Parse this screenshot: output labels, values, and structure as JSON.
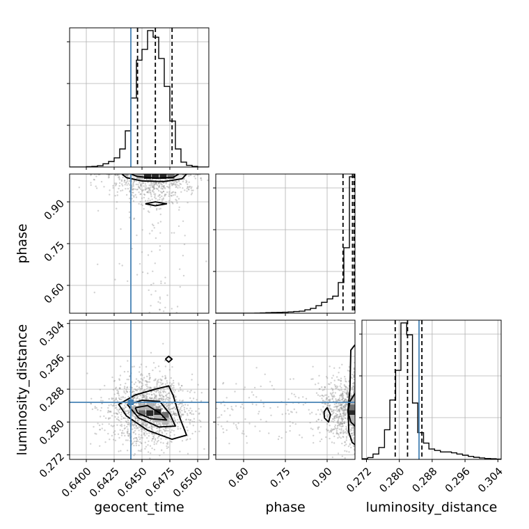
{
  "colors": {
    "truth": "#4682b4",
    "hist": "#000000",
    "grid": "#b0b0b0",
    "scatter": "#9a9a9a",
    "density": [
      "#e6e6e6",
      "#b3b3b3",
      "#6e6e6e",
      "#262626"
    ]
  },
  "chart_data": {
    "type": "corner",
    "grid": true,
    "parameters": [
      {
        "name": "geocent_time",
        "label": "geocent_time",
        "range": [
          0.6385,
          0.651
        ],
        "ticks": [
          0.64,
          0.6425,
          0.645,
          0.6475,
          0.65
        ],
        "tick_labels": [
          "0.6400",
          "0.6425",
          "0.6450",
          "0.6475",
          "0.6500"
        ],
        "truth": 0.644,
        "quantiles": [
          0.6446,
          0.6462,
          0.6477
        ]
      },
      {
        "name": "phase",
        "label": "phase",
        "range": [
          0.5,
          1.0
        ],
        "ticks": [
          0.6,
          0.75,
          0.9
        ],
        "tick_labels": [
          "0.60",
          "0.75",
          "0.90"
        ],
        "truth": null,
        "quantiles": [
          0.957,
          0.991,
          0.997
        ]
      },
      {
        "name": "luminosity_distance",
        "label": "luminosity_distance",
        "range": [
          0.2709,
          0.3048
        ],
        "ticks": [
          0.272,
          0.28,
          0.288,
          0.296,
          0.304
        ],
        "tick_labels": [
          "0.272",
          "0.280",
          "0.288",
          "0.296",
          "0.304"
        ],
        "truth": 0.2848,
        "quantiles": [
          0.279,
          0.282,
          0.2855
        ]
      }
    ],
    "histograms": {
      "geocent_time": {
        "bin_edges": [
          0.6385,
          0.639,
          0.6395,
          0.64,
          0.6405,
          0.641,
          0.6415,
          0.642,
          0.6425,
          0.643,
          0.6435,
          0.644,
          0.6445,
          0.645,
          0.6455,
          0.646,
          0.6465,
          0.647,
          0.6475,
          0.648,
          0.6485,
          0.649,
          0.6495,
          0.65,
          0.6505,
          0.651
        ],
        "counts": [
          0,
          0,
          0,
          1,
          2,
          4,
          10,
          17,
          28,
          55,
          110,
          210,
          325,
          358,
          415,
          395,
          330,
          245,
          140,
          55,
          15,
          5,
          2,
          0,
          0
        ]
      },
      "phase": {
        "bin_edges": [
          0.5,
          0.52,
          0.54,
          0.56,
          0.58,
          0.6,
          0.62,
          0.64,
          0.66,
          0.68,
          0.7,
          0.72,
          0.74,
          0.76,
          0.78,
          0.8,
          0.82,
          0.84,
          0.86,
          0.88,
          0.9,
          0.92,
          0.94,
          0.96,
          0.98,
          1.0
        ],
        "counts": [
          0,
          0,
          0,
          0,
          0,
          0,
          0,
          1,
          2,
          4,
          5,
          6,
          7,
          9,
          12,
          15,
          25,
          35,
          55,
          80,
          105,
          125,
          225,
          480,
          1000
        ]
      },
      "luminosity_distance": {
        "bin_edges": [
          0.2709,
          0.2723,
          0.2736,
          0.275,
          0.2764,
          0.2777,
          0.2791,
          0.2804,
          0.2818,
          0.2832,
          0.2845,
          0.2859,
          0.2872,
          0.2886,
          0.29,
          0.2913,
          0.2927,
          0.294,
          0.2954,
          0.2968,
          0.2981,
          0.2995,
          0.3008,
          0.3022,
          0.3036,
          0.3048
        ],
        "counts": [
          2,
          6,
          18,
          40,
          100,
          200,
          300,
          460,
          420,
          190,
          90,
          55,
          35,
          30,
          25,
          25,
          22,
          18,
          14,
          10,
          7,
          5,
          3,
          2,
          1
        ]
      }
    },
    "pairs": [
      {
        "x": "geocent_time",
        "y": "phase",
        "center": [
          0.6462,
          0.99
        ],
        "spread": [
          0.0017,
          0.045
        ],
        "scatter_count": 900,
        "density_cells": [
          {
            "x": 0.6455,
            "y": 0.995,
            "level": 3
          },
          {
            "x": 0.6462,
            "y": 0.995,
            "level": 3
          },
          {
            "x": 0.6469,
            "y": 0.995,
            "level": 3
          },
          {
            "x": 0.6448,
            "y": 0.995,
            "level": 1
          },
          {
            "x": 0.6476,
            "y": 0.995,
            "level": 2
          },
          {
            "x": 0.6441,
            "y": 0.995,
            "level": 0
          },
          {
            "x": 0.6483,
            "y": 0.995,
            "level": 0
          }
        ],
        "contours": [
          [
            [
              0.6432,
              1.0
            ],
            [
              0.6436,
              0.987
            ],
            [
              0.645,
              0.975
            ],
            [
              0.647,
              0.973
            ],
            [
              0.6486,
              0.983
            ],
            [
              0.649,
              1.0
            ]
          ],
          [
            [
              0.644,
              1.0
            ],
            [
              0.6446,
              0.991
            ],
            [
              0.6462,
              0.985
            ],
            [
              0.6478,
              0.988
            ],
            [
              0.6483,
              1.0
            ]
          ],
          [
            [
              0.6453,
              0.893
            ],
            [
              0.6462,
              0.9
            ],
            [
              0.6472,
              0.893
            ],
            [
              0.6462,
              0.886
            ],
            [
              0.6453,
              0.893
            ]
          ]
        ]
      },
      {
        "x": "geocent_time",
        "y": "luminosity_distance",
        "center": [
          0.6455,
          0.283
        ],
        "spread": [
          0.0016,
          0.0042
        ],
        "scatter_count": 1400,
        "density_cells": [
          {
            "x": 0.645,
            "y": 0.2823,
            "level": 2
          },
          {
            "x": 0.6457,
            "y": 0.2823,
            "level": 3
          },
          {
            "x": 0.6464,
            "y": 0.2823,
            "level": 3
          },
          {
            "x": 0.6471,
            "y": 0.2816,
            "level": 2
          },
          {
            "x": 0.6443,
            "y": 0.283,
            "level": 1
          },
          {
            "x": 0.645,
            "y": 0.2837,
            "level": 1
          },
          {
            "x": 0.6457,
            "y": 0.2837,
            "level": 1
          },
          {
            "x": 0.6464,
            "y": 0.2809,
            "level": 1
          },
          {
            "x": 0.6471,
            "y": 0.2802,
            "level": 1
          }
        ],
        "contours": [
          [
            [
              0.6429,
              0.2843
            ],
            [
              0.6444,
              0.2866
            ],
            [
              0.6462,
              0.288
            ],
            [
              0.6474,
              0.2888
            ],
            [
              0.6478,
              0.2865
            ],
            [
              0.6484,
              0.281
            ],
            [
              0.649,
              0.2768
            ],
            [
              0.6477,
              0.2758
            ],
            [
              0.6455,
              0.278
            ],
            [
              0.6436,
              0.2815
            ],
            [
              0.6429,
              0.2843
            ]
          ],
          [
            [
              0.6437,
              0.2842
            ],
            [
              0.645,
              0.2853
            ],
            [
              0.6466,
              0.285
            ],
            [
              0.6475,
              0.282
            ],
            [
              0.648,
              0.279
            ],
            [
              0.6465,
              0.2788
            ],
            [
              0.6447,
              0.281
            ],
            [
              0.6437,
              0.2842
            ]
          ],
          [
            [
              0.6444,
              0.2835
            ],
            [
              0.6455,
              0.284
            ],
            [
              0.6466,
              0.2822
            ],
            [
              0.6472,
              0.2805
            ],
            [
              0.6458,
              0.2808
            ],
            [
              0.6446,
              0.2822
            ],
            [
              0.6444,
              0.2835
            ]
          ],
          [
            [
              0.6471,
              0.2953
            ],
            [
              0.6474,
              0.296
            ],
            [
              0.6477,
              0.2953
            ],
            [
              0.6474,
              0.2946
            ],
            [
              0.6471,
              0.2953
            ]
          ]
        ]
      },
      {
        "x": "phase",
        "y": "luminosity_distance",
        "center": [
          0.985,
          0.283
        ],
        "spread": [
          0.05,
          0.0042
        ],
        "scatter_count": 1100,
        "density_cells": [
          {
            "x": 0.99,
            "y": 0.2823,
            "level": 3
          },
          {
            "x": 0.99,
            "y": 0.2837,
            "level": 2
          },
          {
            "x": 0.99,
            "y": 0.2809,
            "level": 1
          },
          {
            "x": 0.99,
            "y": 0.2851,
            "level": 1
          }
        ],
        "contours": [
          [
            [
              1.0,
              0.2988
            ],
            [
              0.985,
              0.2975
            ],
            [
              0.982,
              0.288
            ],
            [
              0.975,
              0.283
            ],
            [
              0.978,
              0.2775
            ],
            [
              0.99,
              0.275
            ],
            [
              1.0,
              0.2745
            ]
          ],
          [
            [
              1.0,
              0.287
            ],
            [
              0.982,
              0.285
            ],
            [
              0.975,
              0.2825
            ],
            [
              0.985,
              0.28
            ],
            [
              1.0,
              0.279
            ]
          ],
          [
            [
              0.89,
              0.281
            ],
            [
              0.905,
              0.28
            ],
            [
              0.912,
              0.2818
            ],
            [
              0.9,
              0.2835
            ],
            [
              0.889,
              0.2825
            ],
            [
              0.89,
              0.281
            ]
          ]
        ]
      }
    ]
  }
}
